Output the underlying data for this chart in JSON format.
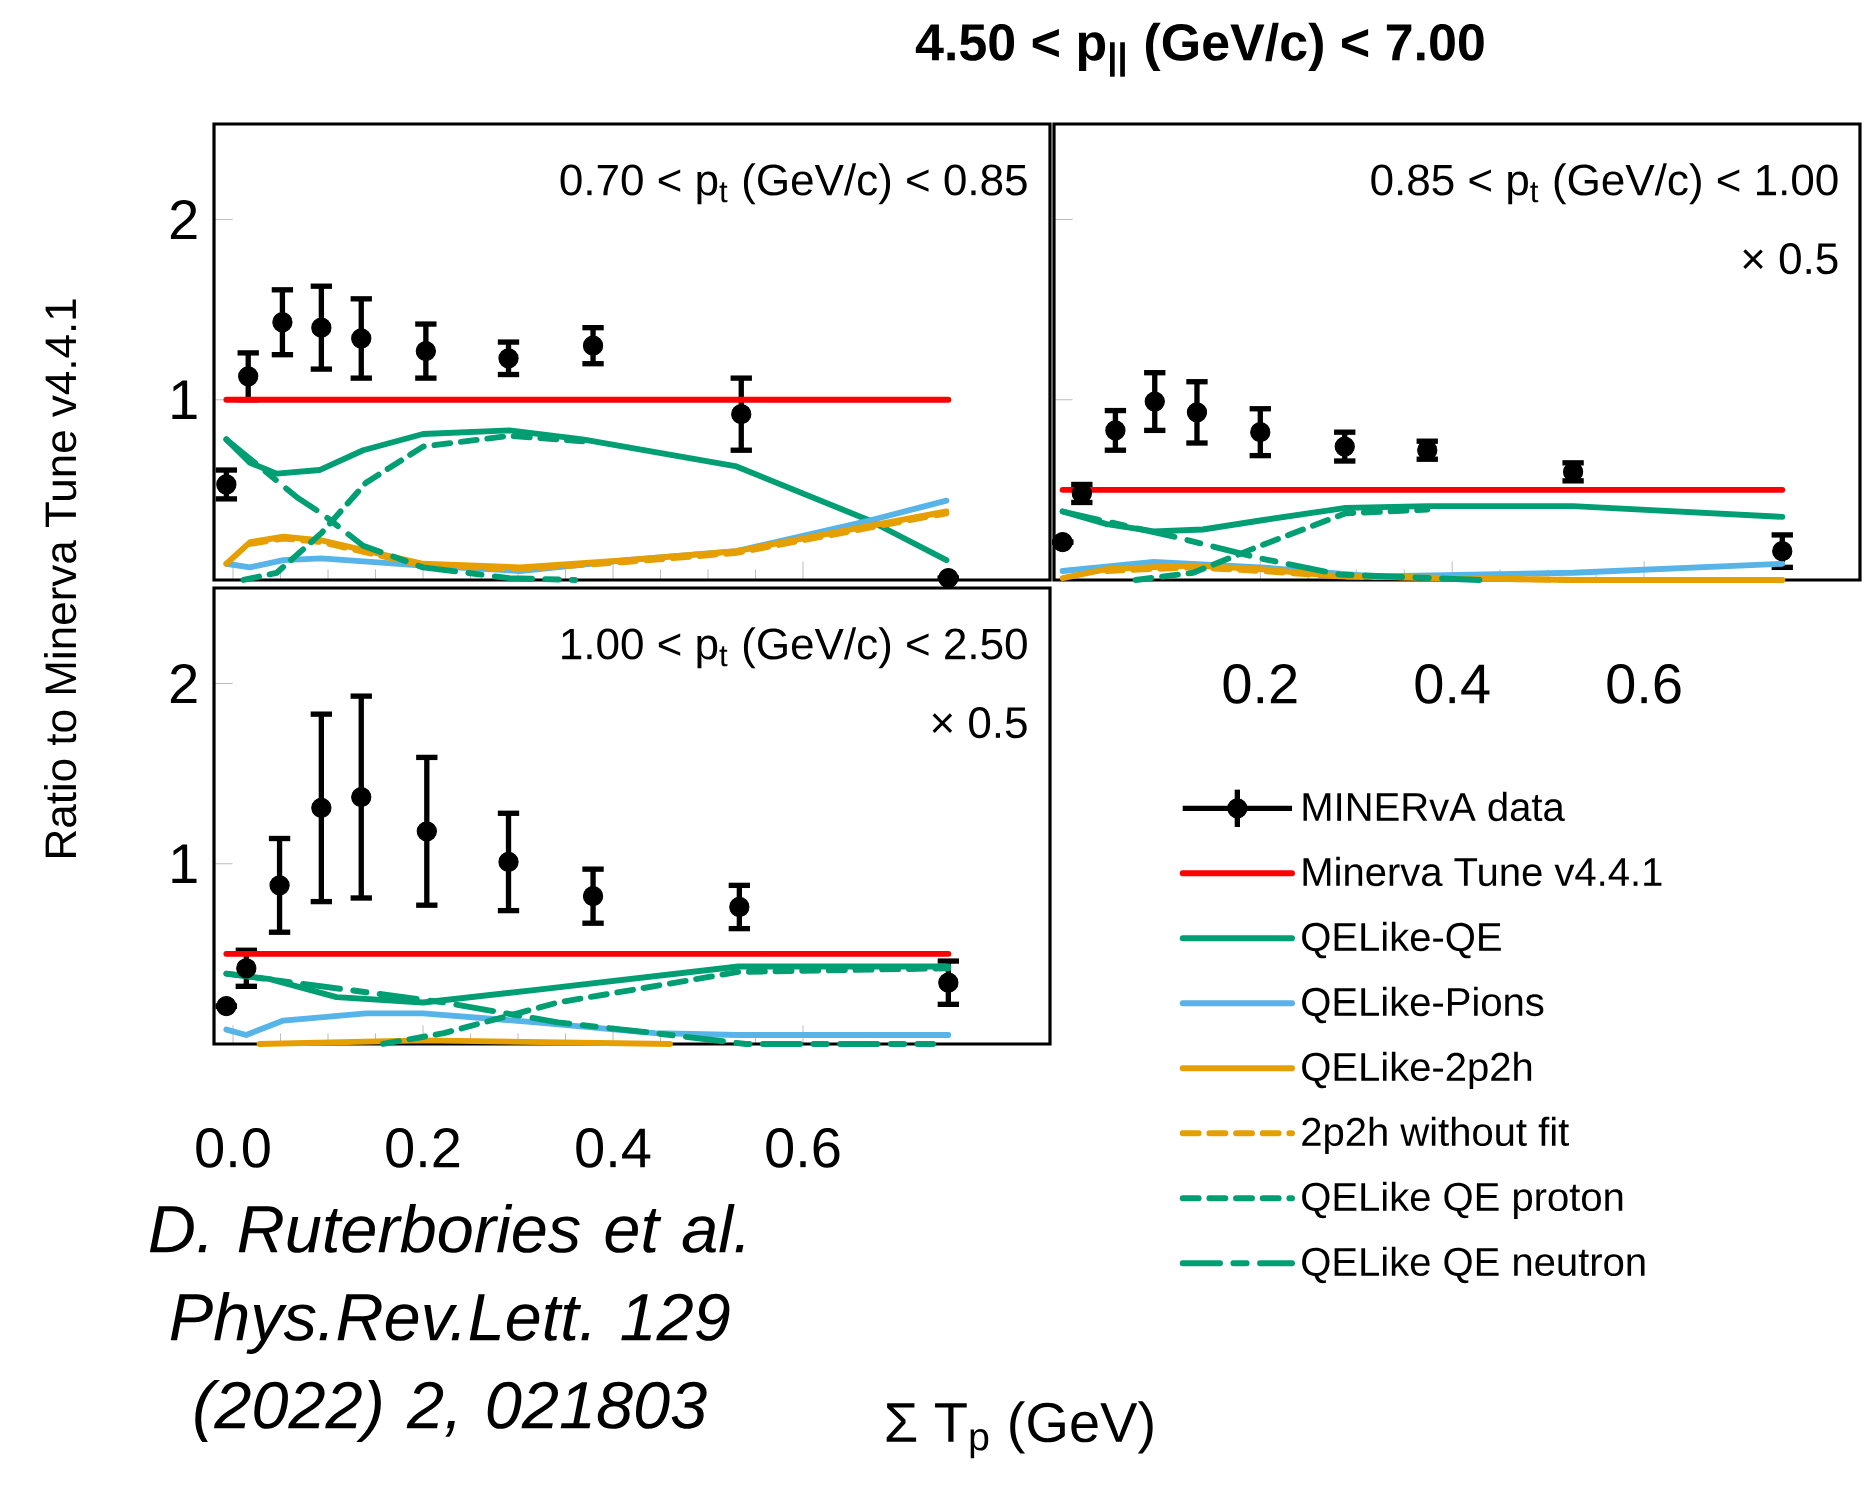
{
  "chart_data": [
    {
      "type": "line",
      "title": "4.50 < p$_{||}$ (GeV/c) < 7.00",
      "xlim": [
        -0.02,
        0.86
      ],
      "ylim": [
        0,
        2.53
      ],
      "xticks": [
        0,
        0.2,
        0.4,
        0.6
      ],
      "yticks": [
        1,
        2
      ],
      "tick_labels": "y",
      "legend": "bottom right",
      "annotations": [
        "0.70 < p$_{t}$ (GeV/c) < 0.85"
      ],
      "series": [
        {
          "name": "MINERvA data",
          "type": "scatter",
          "marker": "circle",
          "color": "#000000",
          "x": [
            -0.007,
            0.016,
            0.052,
            0.093,
            0.135,
            0.203,
            0.29,
            0.379,
            0.535,
            0.753
          ],
          "values": [
            0.53,
            1.13,
            1.43,
            1.4,
            1.34,
            1.27,
            1.23,
            1.3,
            0.92,
            0.01
          ],
          "errors": [
            0.08,
            0.13,
            0.18,
            0.23,
            0.22,
            0.15,
            0.09,
            0.1,
            0.2,
            null
          ]
        },
        {
          "name": "Minerva Tune v4.4.1",
          "color": "#ff0000",
          "line_style": "solid",
          "x": [
            -0.007,
            0.753
          ],
          "values": [
            1,
            1
          ]
        },
        {
          "name": "QELike-QE",
          "color": "#009e73",
          "line_style": "solid",
          "x": [
            -0.007,
            0.018,
            0.046,
            0.091,
            0.137,
            0.2,
            0.291,
            0.368,
            0.53,
            0.67,
            0.751
          ],
          "values": [
            0.78,
            0.65,
            0.59,
            0.61,
            0.72,
            0.81,
            0.83,
            0.78,
            0.63,
            0.33,
            0.11
          ]
        },
        {
          "name": "QELike-Pions",
          "color": "#56b4e9",
          "line_style": "solid",
          "x": [
            -0.007,
            0.018,
            0.053,
            0.093,
            0.2,
            0.302,
            0.414,
            0.53,
            0.67,
            0.751
          ],
          "values": [
            0.09,
            0.07,
            0.11,
            0.12,
            0.08,
            0.05,
            0.11,
            0.16,
            0.33,
            0.44
          ]
        },
        {
          "name": "QELike-2p2h",
          "color": "#e69f00",
          "line_style": "solid",
          "x": [
            -0.007,
            0.018,
            0.053,
            0.093,
            0.2,
            0.302,
            0.414,
            0.53,
            0.67,
            0.751
          ],
          "values": [
            0.09,
            0.21,
            0.24,
            0.22,
            0.09,
            0.07,
            0.11,
            0.16,
            0.3,
            0.38
          ]
        },
        {
          "name": "2p2h without fit",
          "color": "#e69f00",
          "line_style": "dashed",
          "x": [
            0.018,
            0.053,
            0.093,
            0.2,
            0.302,
            0.414,
            0.53,
            0.67,
            0.751
          ],
          "values": [
            0.2,
            0.23,
            0.21,
            0.08,
            0.06,
            0.1,
            0.15,
            0.29,
            0.37
          ]
        },
        {
          "name": "QELike QE proton",
          "color": "#009e73",
          "line_style": "dashed",
          "x": [
            0.011,
            0.046,
            0.093,
            0.14,
            0.2,
            0.291,
            0.368
          ],
          "values": [
            0.0,
            0.04,
            0.26,
            0.54,
            0.74,
            0.8,
            0.77
          ]
        },
        {
          "name": "QELike QE neutron",
          "color": "#009e73",
          "line_style": "dashdotted",
          "x": [
            -0.007,
            0.067,
            0.093,
            0.137,
            0.2,
            0.291,
            0.36
          ],
          "values": [
            0.78,
            0.46,
            0.37,
            0.19,
            0.07,
            0.01,
            0.0
          ]
        }
      ]
    },
    {
      "type": "line",
      "xlim": [
        -0.015,
        0.825
      ],
      "ylim": [
        0,
        2.53
      ],
      "xticks": [
        0.2,
        0.4,
        0.6
      ],
      "yticks": [
        1,
        2
      ],
      "tick_labels": "x",
      "annotations": [
        "0.85 < p$_{t}$ (GeV/c) < 1.00",
        "× 0.5"
      ],
      "series": [
        {
          "type": "scatter",
          "marker": "circle",
          "color": "#000000",
          "x": [
            -0.006,
            0.014,
            0.049,
            0.09,
            0.134,
            0.2,
            0.288,
            0.374,
            0.526,
            0.744
          ],
          "values": [
            0.21,
            0.48,
            0.83,
            0.99,
            0.93,
            0.82,
            0.74,
            0.72,
            0.6,
            0.16
          ],
          "errors": [
            null,
            0.05,
            0.11,
            0.16,
            0.17,
            0.13,
            0.08,
            0.05,
            0.05,
            0.09
          ]
        },
        {
          "color": "#ff0000",
          "line_style": "solid",
          "x": [
            -0.006,
            0.744
          ],
          "values": [
            0.5,
            0.5
          ]
        },
        {
          "color": "#009e73",
          "line_style": "solid",
          "x": [
            -0.006,
            0.04,
            0.089,
            0.14,
            0.2,
            0.289,
            0.374,
            0.526,
            0.744
          ],
          "values": [
            0.38,
            0.31,
            0.27,
            0.28,
            0.33,
            0.4,
            0.41,
            0.41,
            0.35
          ]
        },
        {
          "color": "#56b4e9",
          "line_style": "solid",
          "x": [
            -0.006,
            0.089,
            0.2,
            0.32,
            0.526,
            0.744
          ],
          "values": [
            0.05,
            0.1,
            0.07,
            0.02,
            0.04,
            0.09
          ]
        },
        {
          "color": "#e69f00",
          "line_style": "solid",
          "x": [
            -0.006,
            0.04,
            0.13,
            0.2,
            0.283,
            0.526,
            0.744
          ],
          "values": [
            0.01,
            0.06,
            0.08,
            0.06,
            0.02,
            0.0,
            0.0
          ]
        },
        {
          "color": "#e69f00",
          "line_style": "dashed",
          "x": [
            0.04,
            0.13,
            0.2,
            0.283,
            0.526,
            0.744
          ],
          "values": [
            0.05,
            0.07,
            0.05,
            0.02,
            0.0,
            0.0
          ]
        },
        {
          "color": "#009e73",
          "line_style": "dashed",
          "x": [
            0.07,
            0.13,
            0.2,
            0.289,
            0.374
          ],
          "values": [
            0.0,
            0.04,
            0.19,
            0.37,
            0.39
          ]
        },
        {
          "color": "#009e73",
          "line_style": "dashdotted",
          "x": [
            -0.006,
            0.11,
            0.2,
            0.283,
            0.429
          ],
          "values": [
            0.38,
            0.24,
            0.12,
            0.03,
            0.0
          ]
        }
      ]
    },
    {
      "type": "line",
      "xlabel": "Σ T$_{p}$ (GeV)",
      "ylabel": "Ratio to Minerva Tune v4.4.1",
      "xlim": [
        -0.02,
        0.86
      ],
      "ylim": [
        0,
        2.53
      ],
      "xticks": [
        {
          "value": 0,
          "label": "0.0"
        },
        0.2,
        0.4,
        0.6
      ],
      "yticks": [
        1,
        2
      ],
      "annotations": [
        "1.00 < p$_{t}$ (GeV/c) < 2.50",
        "× 0.5",
        "D. Ruterbories et al. Phys.Rev.Lett. 129 (2022) 2, 021803"
      ],
      "series": [
        {
          "type": "scatter",
          "marker": "circle",
          "color": "#000000",
          "x": [
            -0.007,
            0.014,
            0.049,
            0.093,
            0.135,
            0.204,
            0.29,
            0.379,
            0.533,
            0.753
          ],
          "values": [
            0.21,
            0.42,
            0.88,
            1.31,
            1.37,
            1.18,
            1.01,
            0.82,
            0.76,
            0.34
          ],
          "errors": [
            null,
            0.1,
            0.26,
            0.52,
            0.56,
            0.41,
            0.27,
            0.15,
            0.12,
            0.12
          ]
        },
        {
          "color": "#ff0000",
          "line_style": "solid",
          "x": [
            -0.007,
            0.753
          ],
          "values": [
            0.5,
            0.5
          ]
        },
        {
          "color": "#009e73",
          "line_style": "solid",
          "x": [
            -0.007,
            0.039,
            0.109,
            0.2,
            0.319,
            0.532,
            0.753
          ],
          "values": [
            0.39,
            0.36,
            0.26,
            0.23,
            0.3,
            0.43,
            0.43
          ]
        },
        {
          "color": "#56b4e9",
          "line_style": "solid",
          "x": [
            -0.007,
            0.014,
            0.053,
            0.14,
            0.2,
            0.319,
            0.444,
            0.532,
            0.753
          ],
          "values": [
            0.08,
            0.05,
            0.13,
            0.17,
            0.17,
            0.12,
            0.06,
            0.05,
            0.05
          ]
        },
        {
          "color": "#e69f00",
          "line_style": "solid",
          "x": [
            0.028,
            0.2,
            0.46
          ],
          "values": [
            0.0,
            0.02,
            0.0
          ]
        },
        {
          "color": "#009e73",
          "line_style": "dashed",
          "x": [
            0.158,
            0.222,
            0.342,
            0.532,
            0.753
          ],
          "values": [
            0.0,
            0.06,
            0.23,
            0.4,
            0.42
          ]
        },
        {
          "color": "#009e73",
          "line_style": "dashdotted",
          "x": [
            -0.007,
            0.222,
            0.342,
            0.444,
            0.54,
            0.737
          ],
          "values": [
            0.39,
            0.23,
            0.12,
            0.06,
            0.0,
            0.0
          ]
        }
      ]
    }
  ]
}
